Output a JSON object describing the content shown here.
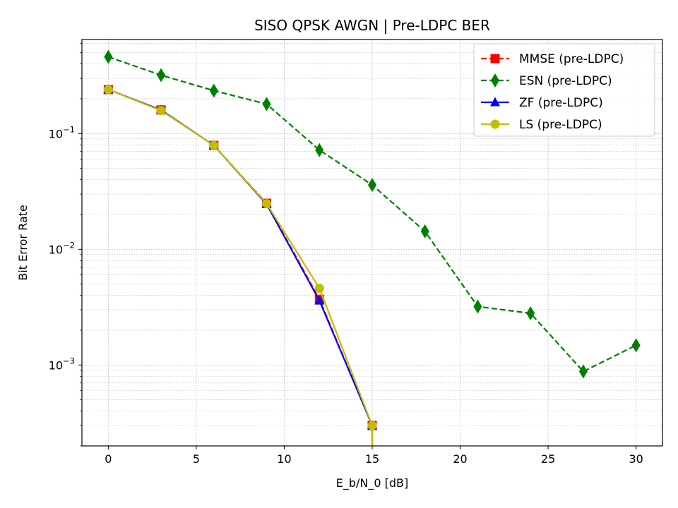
{
  "chart_data": {
    "type": "line",
    "title": "SISO QPSK AWGN | Pre-LDPC BER",
    "xlabel": "E_b/N_0 [dB]",
    "ylabel": "Bit Error Rate",
    "xlim": [
      -1.5,
      31.5
    ],
    "ylim": [
      0.0002,
      0.65
    ],
    "yscale": "log",
    "grid": true,
    "legend_position": "top-right",
    "x_ticks": [
      0,
      5,
      10,
      15,
      20,
      25,
      30
    ],
    "y_ticks": [
      {
        "value": 0.1,
        "base": "10",
        "exp": "−1"
      },
      {
        "value": 0.01,
        "base": "10",
        "exp": "−2"
      },
      {
        "value": 0.001,
        "base": "10",
        "exp": "−3"
      }
    ],
    "series": [
      {
        "name": "MMSE (pre-LDPC)",
        "color": "#ff0000",
        "marker": "square",
        "linestyle": "dashed",
        "x": [
          0,
          3,
          6,
          9,
          12,
          15,
          15
        ],
        "y": [
          0.24,
          0.16,
          0.079,
          0.025,
          0.0037,
          0.0003,
          0.00015
        ]
      },
      {
        "name": "ESN (pre-LDPC)",
        "color": "#008000",
        "marker": "thin_diamond",
        "linestyle": "dashed",
        "x": [
          0,
          3,
          6,
          9,
          12,
          15,
          18,
          21,
          24,
          27,
          30
        ],
        "y": [
          0.46,
          0.32,
          0.235,
          0.18,
          0.072,
          0.036,
          0.0143,
          0.0032,
          0.0028,
          0.00088,
          0.00148
        ]
      },
      {
        "name": "ZF (pre-LDPC)",
        "color": "#0000ff",
        "marker": "triangle",
        "linestyle": "solid",
        "x": [
          0,
          3,
          6,
          9,
          12,
          15,
          15
        ],
        "y": [
          0.24,
          0.16,
          0.079,
          0.0245,
          0.0036,
          0.0003,
          0.00015
        ]
      },
      {
        "name": "LS (pre-LDPC)",
        "color": "#bfbf00",
        "marker": "circle",
        "linestyle": "solid",
        "x": [
          0,
          3,
          6,
          9,
          12,
          15,
          15
        ],
        "y": [
          0.24,
          0.158,
          0.079,
          0.0248,
          0.0046,
          0.0003,
          0.00015
        ]
      }
    ]
  }
}
